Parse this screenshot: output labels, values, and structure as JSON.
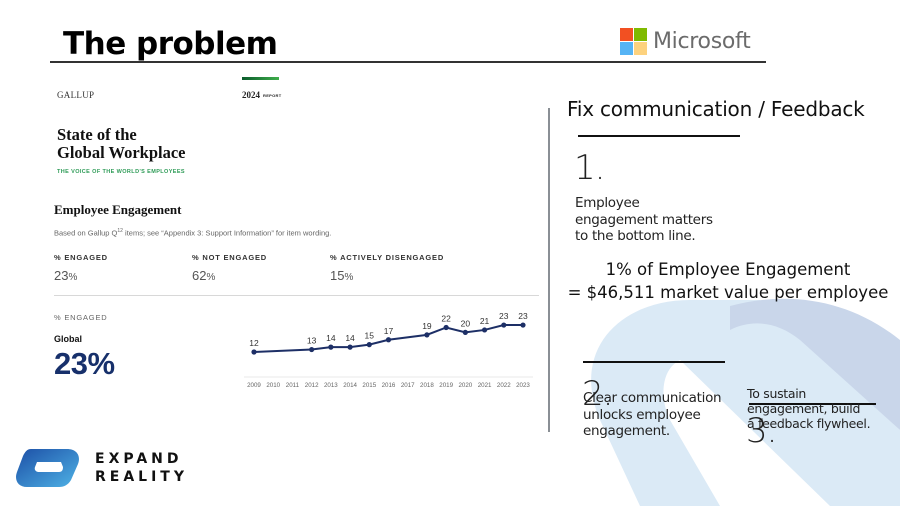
{
  "slide": {
    "title": "The problem"
  },
  "brand": {
    "microsoft_label": "Microsoft",
    "microsoft_colors": [
      "#f25022",
      "#7fba00",
      "#00a4ef",
      "#ffb900"
    ],
    "expand_reality_line1": "EXPAND",
    "expand_reality_line2": "REALITY"
  },
  "gallup_report": {
    "publisher": "GALLUP",
    "year": "2024",
    "year_suffix": "REPORT",
    "title_line1": "State of the",
    "title_line2": "Global Workplace",
    "subtitle": "THE VOICE OF THE WORLD'S EMPLOYEES",
    "section_title": "Employee Engagement",
    "note_prefix": "Based on Gallup Q",
    "note_sup": "12",
    "note_suffix": " items; see “Appendix 3: Support Information” for item wording.",
    "stats": [
      {
        "label": "% ENGAGED",
        "value": "23",
        "unit": "%"
      },
      {
        "label": "% NOT ENGAGED",
        "value": "62",
        "unit": "%"
      },
      {
        "label": "% ACTIVELY DISENGAGED",
        "value": "15",
        "unit": "%"
      }
    ],
    "trend_label": "% ENGAGED",
    "region_label": "Global",
    "region_value": "23%"
  },
  "chart_data": {
    "type": "line",
    "title": "% Engaged — Global",
    "x": [
      "2009",
      "2010",
      "2011",
      "2012",
      "2013",
      "2014",
      "2015",
      "2016",
      "2017",
      "2018",
      "2019",
      "2020",
      "2021",
      "2022",
      "2023"
    ],
    "series": [
      {
        "name": "Global % Engaged",
        "values": [
          12,
          null,
          null,
          13,
          14,
          14,
          15,
          17,
          null,
          19,
          22,
          20,
          21,
          23,
          23
        ]
      }
    ],
    "xlabel": "",
    "ylabel": "",
    "data_labels": true,
    "grid": false,
    "line_color": "#1d2f66"
  },
  "right_panel": {
    "heading": "Fix communication / Feedback",
    "points": [
      {
        "number": "1.",
        "text": [
          "Employee",
          "engagement matters",
          "to the bottom line."
        ]
      },
      {
        "number": "2.",
        "text": [
          "Clear communication",
          "unlocks employee",
          "engagement."
        ]
      },
      {
        "number": "3.",
        "text": [
          "To sustain",
          "engagement, build",
          "a feedback flywheel."
        ]
      }
    ],
    "value_line1": "1% of Employee Engagement",
    "value_line2": "= $46,511 market value per employee"
  }
}
